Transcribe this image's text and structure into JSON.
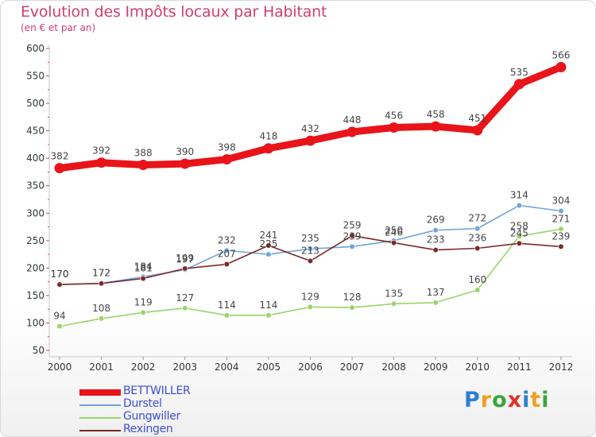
{
  "header": {
    "title": "Evolution des Impôts locaux par Habitant",
    "subtitle": "(en € et par an)"
  },
  "logo": {
    "text": "Proxiti",
    "letter_colors": [
      "#2d7fd1",
      "#f0a020",
      "#3aa53a",
      "#e0302a",
      "#2d7fd1",
      "#f0a020",
      "#3aa53a"
    ]
  },
  "chart_data": {
    "type": "line",
    "x": [
      2000,
      2001,
      2002,
      2003,
      2004,
      2005,
      2006,
      2007,
      2008,
      2009,
      2010,
      2011,
      2012
    ],
    "ylim": [
      50,
      600
    ],
    "yticks": [
      50,
      100,
      150,
      200,
      250,
      300,
      350,
      400,
      450,
      500,
      550,
      600
    ],
    "grid": false,
    "legend_position": "bottom-left",
    "series": [
      {
        "name": "BETTWILLER",
        "color": "#e8141a",
        "highlight": true,
        "values": [
          382,
          392,
          388,
          390,
          398,
          418,
          432,
          448,
          456,
          458,
          451,
          535,
          566
        ]
      },
      {
        "name": "Durstel",
        "color": "#6fa5d8",
        "highlight": false,
        "values": [
          170,
          172,
          184,
          197,
          232,
          225,
          235,
          239,
          250,
          269,
          272,
          314,
          304
        ]
      },
      {
        "name": "Gungwiller",
        "color": "#9ad46a",
        "highlight": false,
        "values": [
          94,
          108,
          119,
          127,
          114,
          114,
          129,
          128,
          135,
          137,
          160,
          258,
          271
        ]
      },
      {
        "name": "Rexingen",
        "color": "#7a2a2a",
        "highlight": false,
        "values": [
          170,
          172,
          181,
          199,
          207,
          241,
          213,
          259,
          246,
          233,
          236,
          245,
          239
        ]
      }
    ],
    "data_labels": [
      {
        "series": "BETTWILLER",
        "labels": [
          "382",
          "392",
          "388",
          "390",
          "398",
          "418",
          "432",
          "448",
          "456",
          "458",
          "451",
          "535",
          "566"
        ]
      },
      {
        "series": "Durstel",
        "labels": [
          "170",
          "172",
          "184",
          "197",
          "232",
          "225",
          "235",
          "239",
          "250",
          "269",
          "272",
          "314",
          "304"
        ]
      },
      {
        "series": "Gungwiller",
        "labels": [
          "94",
          "108",
          "119",
          "127",
          "114",
          "114",
          "129",
          "128",
          "135",
          "137",
          "160",
          "258",
          "271"
        ]
      },
      {
        "series": "Rexingen",
        "labels": [
          "170",
          "172",
          "181",
          "199",
          "207",
          "241",
          "213",
          "259",
          "246",
          "233",
          "236",
          "245",
          "239"
        ]
      }
    ]
  }
}
